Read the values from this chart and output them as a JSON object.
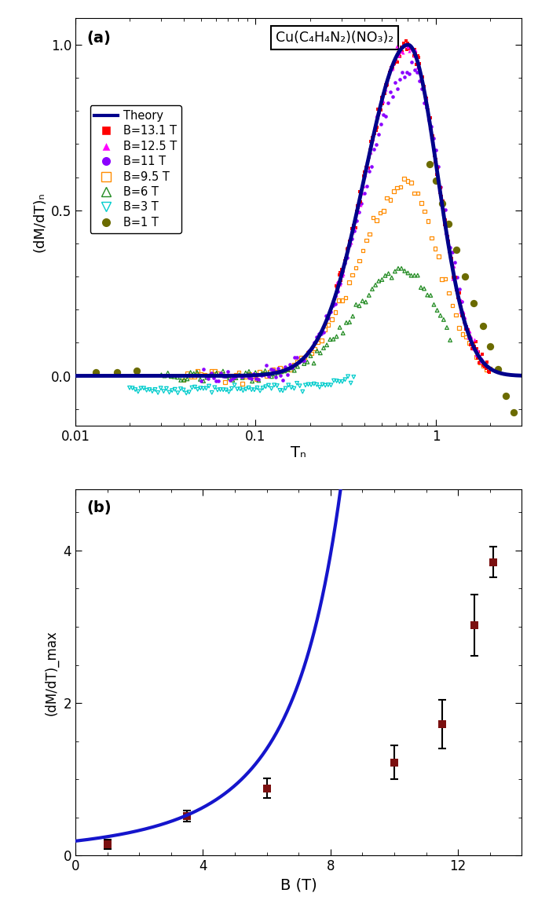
{
  "panel_a": {
    "title_box": "Cu(C₄H₄N₂)(NO₃)₂",
    "ylabel": "(dM/dT)ₙ",
    "xlabel": "Tₙ",
    "xlim": [
      0.01,
      3.0
    ],
    "ylim": [
      -0.15,
      1.08
    ],
    "label_a": "(a)",
    "theory_color": "#00008B",
    "colors": {
      "B131": "#FF0000",
      "B125": "#FF00FF",
      "B11": "#8B00FF",
      "B95": "#FF8C00",
      "B6": "#228B22",
      "B3": "#00CCCC",
      "B1": "#6B6B00"
    }
  },
  "panel_b": {
    "ylabel": "(dM/dT)_max",
    "xlabel": "B (T)",
    "xlim": [
      0,
      14
    ],
    "ylim": [
      0,
      4.8
    ],
    "label_b": "(b)",
    "data_x": [
      1.0,
      3.5,
      6.0,
      10.0,
      11.5,
      12.5,
      13.1
    ],
    "data_y": [
      0.15,
      0.52,
      0.88,
      1.22,
      1.72,
      3.02,
      3.85
    ],
    "data_yerr": [
      0.06,
      0.07,
      0.13,
      0.22,
      0.32,
      0.4,
      0.2
    ],
    "marker_color": "#7B1010",
    "theory_color": "#1515CC"
  }
}
